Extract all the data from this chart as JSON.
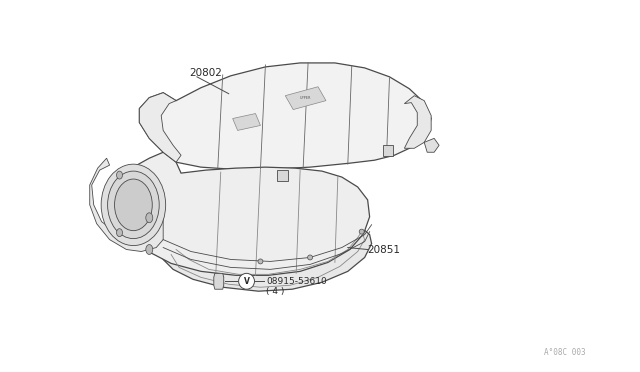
{
  "background_color": "#ffffff",
  "line_color": "#4a4a4a",
  "text_color": "#2a2a2a",
  "label_20802": "20802",
  "label_20851": "20851",
  "label_bolt": "08915-53610",
  "label_bolt_qty": "( 4 )",
  "label_V": "V",
  "watermark": "A°08C 003",
  "fig_width": 6.4,
  "fig_height": 3.72,
  "dpi": 100
}
